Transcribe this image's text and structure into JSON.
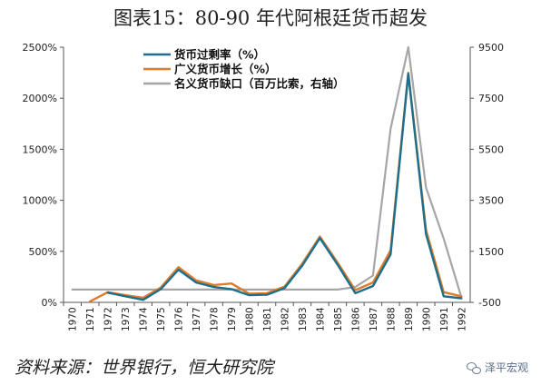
{
  "title": "图表15：80-90 年代阿根廷货币超发",
  "source": "资料来源：世界银行，恒大研究院",
  "watermark": "泽平宏观",
  "colors": {
    "teal": "#1e6f8c",
    "orange": "#e07b2a",
    "gray": "#a6a6a6",
    "axis": "#555555"
  },
  "chart_data": {
    "type": "line",
    "x": [
      "1970",
      "1971",
      "1972",
      "1973",
      "1974",
      "1975",
      "1976",
      "1977",
      "1978",
      "1979",
      "1980",
      "1981",
      "1982",
      "1983",
      "1984",
      "1985",
      "1986",
      "1987",
      "1988",
      "1989",
      "1990",
      "1991",
      "1992"
    ],
    "y_left": {
      "ticks": [
        "0%",
        "500%",
        "1000%",
        "1500%",
        "2000%",
        "2500%"
      ],
      "ylim": [
        0,
        2500
      ]
    },
    "y_right": {
      "ticks": [
        "-500",
        "1500",
        "3500",
        "5500",
        "7500",
        "9500"
      ],
      "ylim": [
        -500,
        9500
      ]
    },
    "legend": {
      "position": "top-left"
    },
    "series": [
      {
        "name": "货币过剩率（%）",
        "axis": "left",
        "color": "#1e6f8c",
        "values": [
          null,
          null,
          95,
          60,
          25,
          130,
          320,
          195,
          150,
          130,
          70,
          75,
          140,
          360,
          630,
          370,
          90,
          160,
          470,
          2240,
          670,
          60,
          40
        ]
      },
      {
        "name": "广义货币增长（%）",
        "axis": "left",
        "color": "#e07b2a",
        "values": [
          null,
          10,
          100,
          70,
          45,
          145,
          345,
          215,
          170,
          185,
          85,
          90,
          155,
          380,
          645,
          390,
          120,
          195,
          510,
          2250,
          710,
          100,
          60
        ]
      },
      {
        "name": "名义货币缺口（百万比索，右轴）",
        "axis": "right",
        "color": "#a6a6a6",
        "values": [
          0,
          0,
          0,
          0,
          0,
          0,
          0,
          0,
          0,
          0,
          0,
          0,
          0,
          0,
          0,
          0,
          100,
          550,
          6300,
          9500,
          4000,
          2000,
          -300
        ]
      }
    ]
  }
}
